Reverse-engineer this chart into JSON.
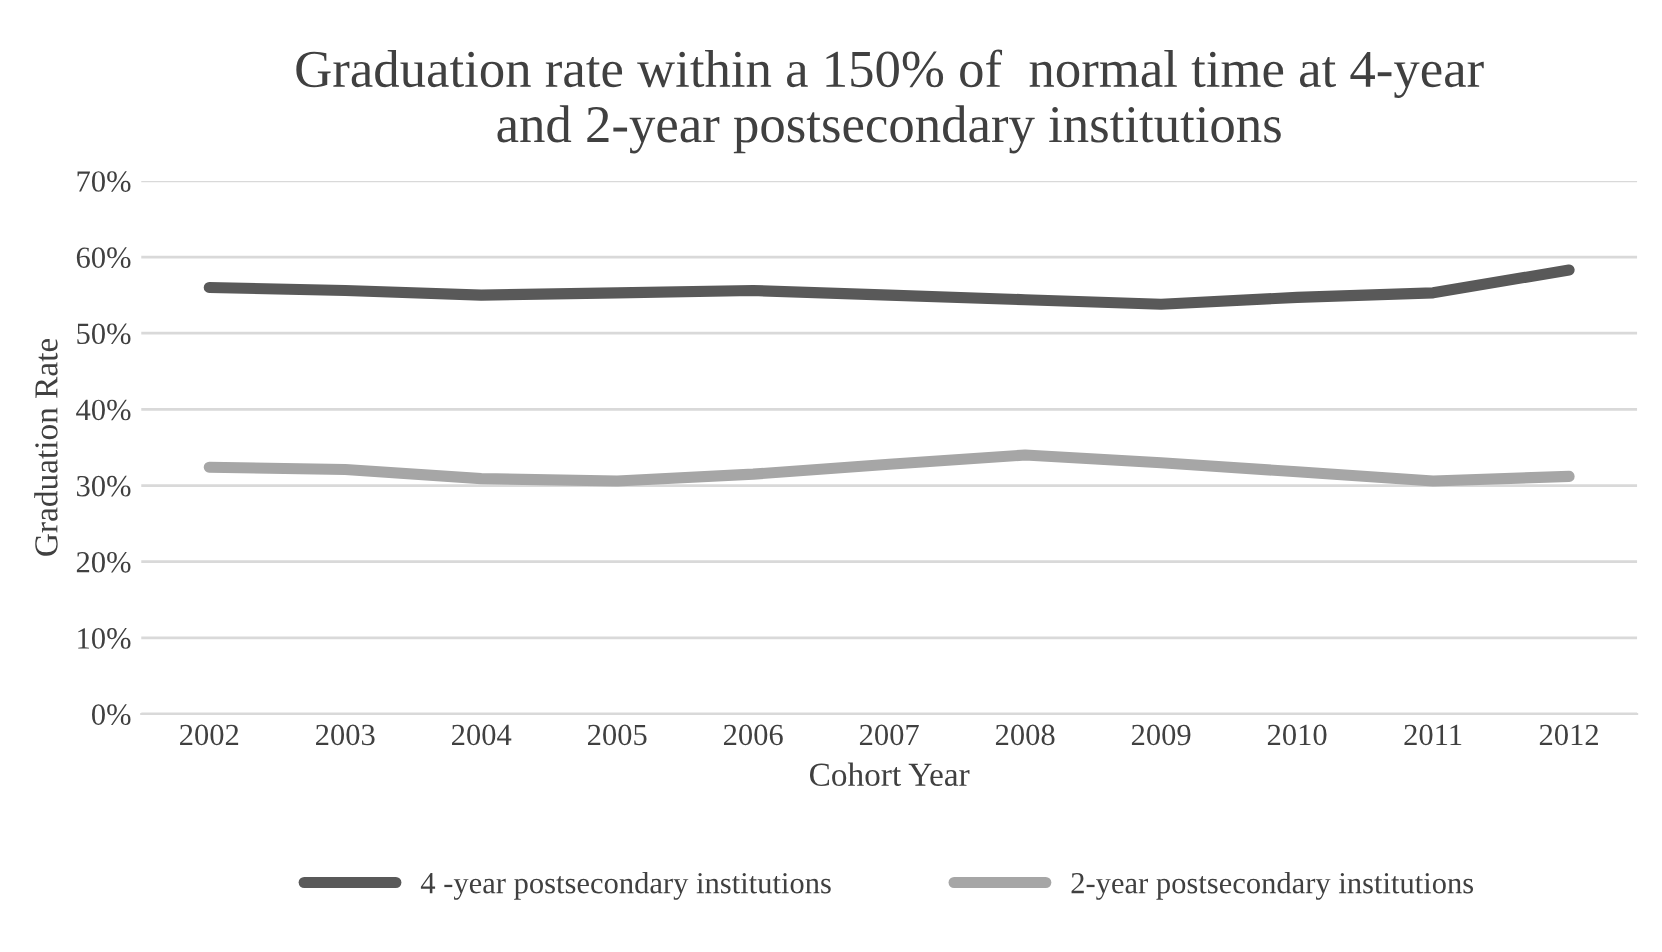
{
  "chart_data": {
    "type": "line",
    "title": "Graduation rate within a 150% of  normal time at 4-year\nand 2-year postsecondary institutions",
    "xlabel": "Cohort Year",
    "ylabel": "Graduation Rate",
    "categories": [
      "2002",
      "2003",
      "2004",
      "2005",
      "2006",
      "2007",
      "2008",
      "2009",
      "2010",
      "2011",
      "2012"
    ],
    "series": [
      {
        "name": "4 -year postsecondary institutions",
        "color": "#595959",
        "values": [
          56,
          55.6,
          55,
          55.3,
          55.6,
          55,
          54.4,
          53.8,
          54.7,
          55.3,
          58.3
        ]
      },
      {
        "name": "2-year postsecondary institutions",
        "color": "#a6a6a6",
        "values": [
          32.4,
          32.1,
          30.9,
          30.6,
          31.5,
          32.8,
          34,
          33,
          31.8,
          30.6,
          31.2
        ]
      }
    ],
    "ylim": [
      0,
      70
    ],
    "yticks": [
      {
        "value": 0,
        "label": "0%"
      },
      {
        "value": 10,
        "label": "10%"
      },
      {
        "value": 20,
        "label": "20%"
      },
      {
        "value": 30,
        "label": "30%"
      },
      {
        "value": 40,
        "label": "40%"
      },
      {
        "value": 50,
        "label": "50%"
      },
      {
        "value": 60,
        "label": "60%"
      },
      {
        "value": 70,
        "label": "70%"
      }
    ],
    "grid": "y",
    "legend": "bottom",
    "marker": "none",
    "line_style": "solid"
  }
}
